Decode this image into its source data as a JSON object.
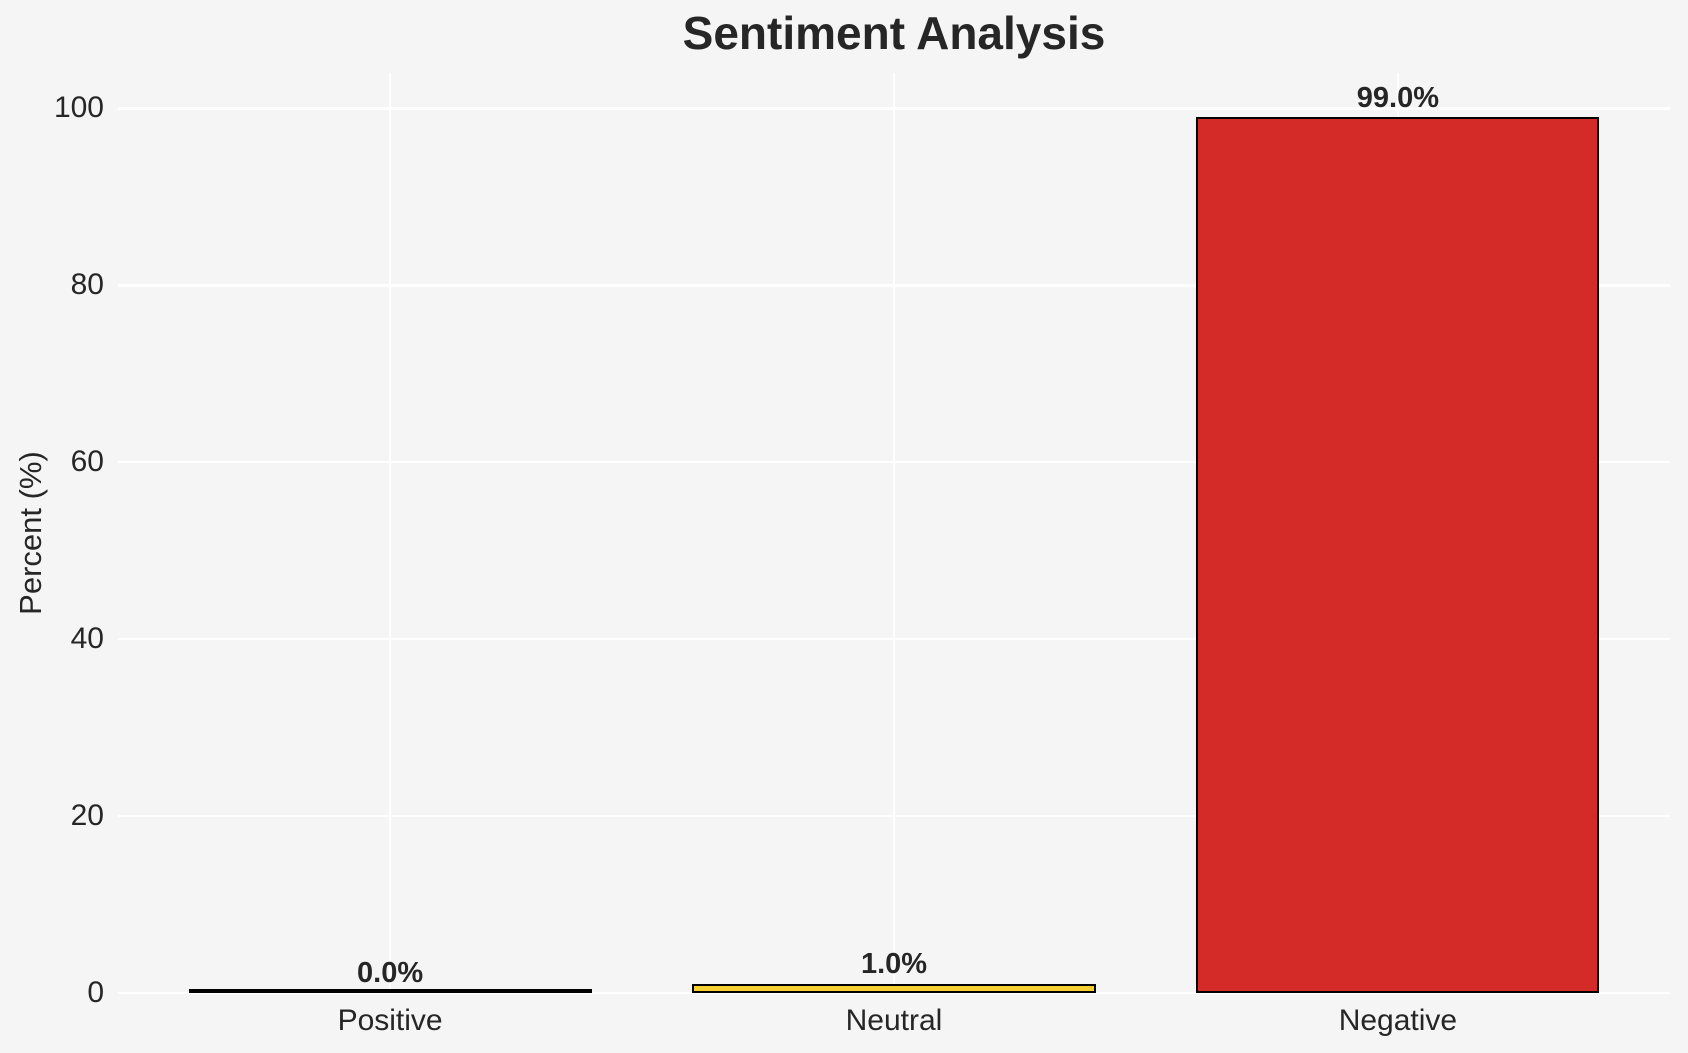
{
  "chart_data": {
    "type": "bar",
    "title": "Sentiment Analysis",
    "xlabel": "",
    "ylabel": "Percent (%)",
    "categories": [
      "Positive",
      "Neutral",
      "Negative"
    ],
    "values": [
      0.0,
      1.0,
      99.0
    ],
    "value_labels": [
      "0.0%",
      "1.0%",
      "99.0%"
    ],
    "bar_colors": [
      "transparent",
      "#f5ce31",
      "#d52b28"
    ],
    "bar_edge_color": "#000000",
    "yticks": [
      0,
      20,
      40,
      60,
      80,
      100
    ],
    "ylim": [
      0,
      104
    ],
    "grid": true,
    "legend": false,
    "colors": {
      "background": "#f5f5f5",
      "gridline": "#ffffff",
      "text": "#262626"
    }
  }
}
